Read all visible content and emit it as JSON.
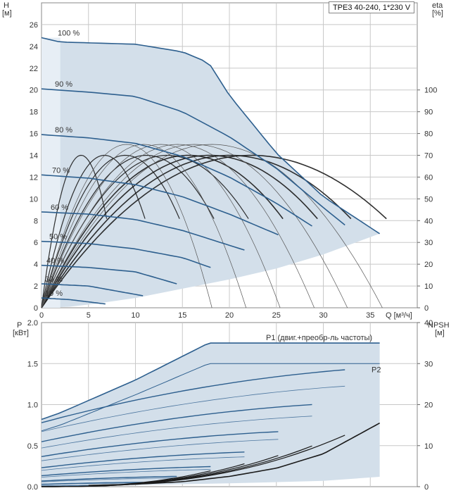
{
  "pump_label": "TPE3 40-240, 1*230 V",
  "colors": {
    "envelope": "#d3dfea",
    "speed_curve": "#2d5f8e",
    "eta_curve": "#1a1a1a",
    "grid": "#c8c8c8"
  },
  "chart_data": [
    {
      "type": "line",
      "xlabel": "Q [м³/ч]",
      "ylabel": "H",
      "ylabel_unit": "[м]",
      "y2label": "eta",
      "y2label_unit": "[%]",
      "xlim": [
        0,
        40
      ],
      "ylim": [
        0,
        28
      ],
      "y2lim": [
        0,
        100
      ],
      "x_ticks": [
        "0",
        "5",
        "10",
        "15",
        "20",
        "25",
        "30",
        "35"
      ],
      "y_ticks": [
        "0",
        "2",
        "4",
        "6",
        "8",
        "10",
        "12",
        "14",
        "16",
        "18",
        "20",
        "22",
        "24",
        "26"
      ],
      "y2_ticks": [
        "0",
        "10",
        "20",
        "30",
        "40",
        "50",
        "60",
        "70",
        "80",
        "90",
        "100"
      ],
      "speed_labels": [
        "100 %",
        "90 %",
        "80 %",
        "70 %",
        "60 %",
        "50 %",
        "40 %",
        "30 %",
        "19 %"
      ],
      "series": [
        {
          "name": "100 %",
          "q": [
            0,
            2,
            10,
            15,
            17.8,
            20,
            25,
            30,
            36
          ],
          "h": [
            24.8,
            24.4,
            24.2,
            23.5,
            22.5,
            19.5,
            14.2,
            10.2,
            6.8
          ]
        },
        {
          "name": "90 %",
          "q": [
            0,
            5,
            10,
            15,
            20,
            25,
            30,
            32.3
          ],
          "h": [
            20.1,
            19.8,
            19.4,
            18.0,
            15.7,
            12.8,
            9.2,
            7.6
          ]
        },
        {
          "name": "80 %",
          "q": [
            0,
            5,
            10,
            15,
            20,
            25,
            28.8
          ],
          "h": [
            15.9,
            15.6,
            15.1,
            13.9,
            12.0,
            9.6,
            7.5
          ]
        },
        {
          "name": "70 %",
          "q": [
            0,
            5,
            10,
            15,
            20,
            25.2
          ],
          "h": [
            12.2,
            11.9,
            11.3,
            10.2,
            8.6,
            6.7
          ]
        },
        {
          "name": "60 %",
          "q": [
            0,
            5,
            10,
            15,
            21.6
          ],
          "h": [
            8.8,
            8.6,
            8.1,
            7.1,
            5.3
          ]
        },
        {
          "name": "50 %",
          "q": [
            0,
            5,
            10,
            15,
            18
          ],
          "h": [
            6.1,
            5.9,
            5.4,
            4.6,
            3.7
          ]
        },
        {
          "name": "40 %",
          "q": [
            0,
            5,
            10,
            14.4
          ],
          "h": [
            3.9,
            3.7,
            3.3,
            2.2
          ]
        },
        {
          "name": "30 %",
          "q": [
            0,
            5,
            10.8
          ],
          "h": [
            2.2,
            2.0,
            1.1
          ]
        },
        {
          "name": "19 %",
          "q": [
            0,
            3,
            6.8
          ],
          "h": [
            0.9,
            0.75,
            0.35
          ]
        }
      ],
      "eta_peak_percent": 70,
      "annotations": []
    },
    {
      "type": "line",
      "xlabel": "",
      "ylabel": "P",
      "ylabel_unit": "[кВт]",
      "y2label": "NPSH",
      "y2label_unit": "[м]",
      "xlim": [
        0,
        40
      ],
      "ylim": [
        0,
        2.0
      ],
      "y2lim": [
        0,
        40
      ],
      "y_ticks": [
        "0.0",
        "0.5",
        "1.0",
        "1.5",
        "2.0"
      ],
      "y2_ticks": [
        "0",
        "10",
        "20",
        "30",
        "40"
      ],
      "series": [
        {
          "name": "P1 (двиг.+преобр-ль частоты)",
          "q": [
            0,
            2,
            10,
            17.8,
            25,
            36
          ],
          "p": [
            0.82,
            0.9,
            1.3,
            1.75,
            1.75,
            1.75
          ]
        },
        {
          "name": "P2",
          "q": [
            0,
            2,
            10,
            17.8,
            25,
            36
          ],
          "p": [
            0.68,
            0.75,
            1.12,
            1.5,
            1.5,
            1.5
          ]
        }
      ],
      "npsh": {
        "q": [
          5,
          10,
          15,
          20,
          25,
          30,
          36
        ],
        "npsh": [
          0.3,
          0.6,
          1.2,
          2.5,
          4.5,
          8.0,
          15.5
        ]
      }
    }
  ]
}
